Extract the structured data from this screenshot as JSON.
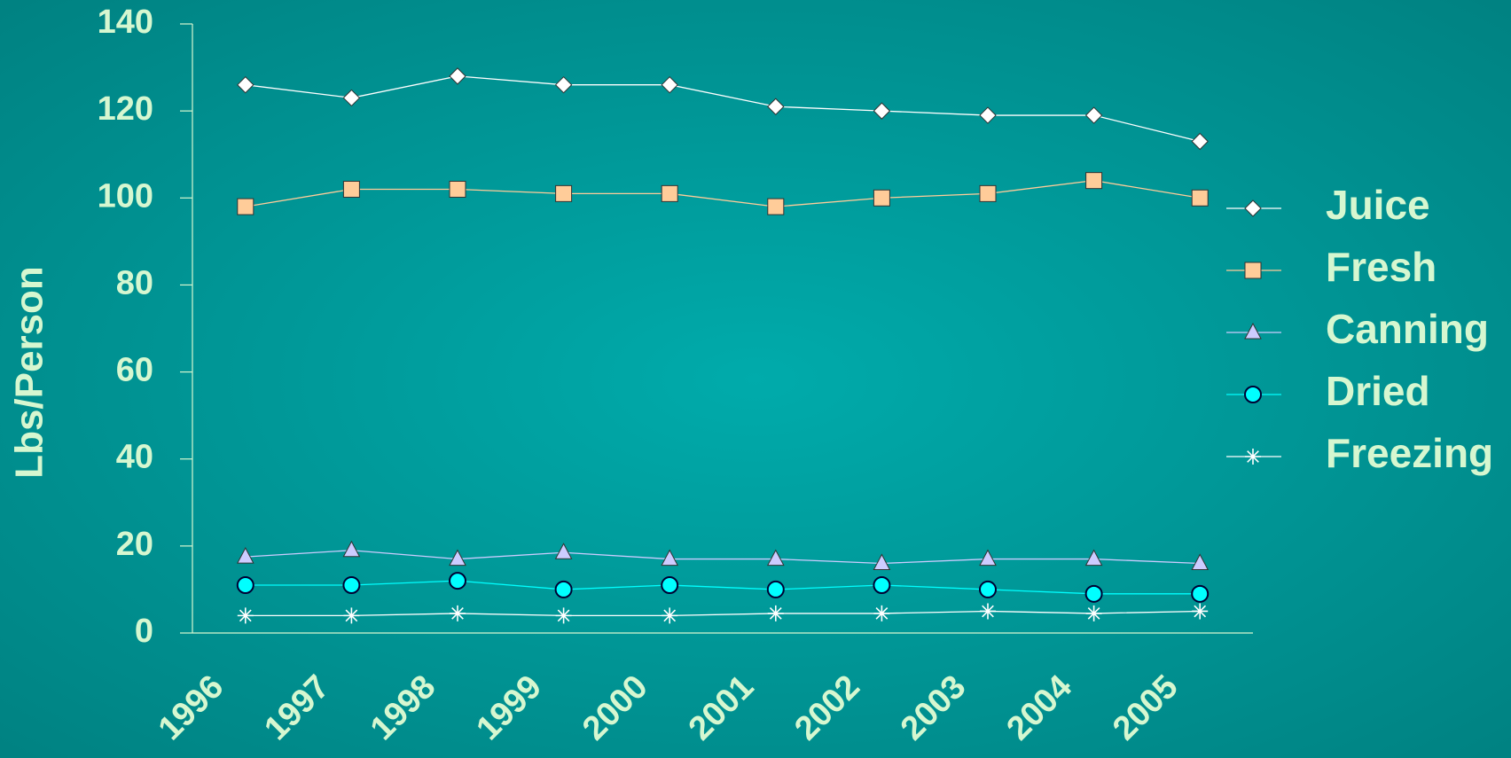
{
  "chart_data": {
    "type": "line",
    "y_label": "Lbs/Person",
    "categories": [
      "1996",
      "1997",
      "1998",
      "1999",
      "2000",
      "2001",
      "2002",
      "2003",
      "2004",
      "2005"
    ],
    "series": [
      {
        "name": "Juice",
        "color": "#ffffff",
        "marker": "diamond",
        "values": [
          126,
          123,
          128,
          126,
          126,
          121,
          120,
          119,
          119,
          113
        ]
      },
      {
        "name": "Fresh",
        "color": "#ffcc99",
        "marker": "square",
        "values": [
          98,
          102,
          102,
          101,
          101,
          98,
          100,
          101,
          104,
          100
        ]
      },
      {
        "name": "Canning",
        "color": "#ccccff",
        "marker": "triangle",
        "values": [
          17.5,
          19,
          17,
          18.5,
          17,
          17,
          16,
          17,
          17,
          16
        ]
      },
      {
        "name": "Dried",
        "color": "#00ffff",
        "marker": "circle",
        "values": [
          11,
          11,
          12,
          10,
          11,
          10,
          11,
          10,
          9,
          9
        ]
      },
      {
        "name": "Freezing",
        "color": "#ffffff",
        "marker": "star",
        "values": [
          4,
          4,
          4.5,
          4,
          4,
          4.5,
          4.5,
          5,
          4.5,
          5
        ]
      }
    ],
    "ylim": [
      0,
      140
    ],
    "yticks": [
      0,
      20,
      40,
      60,
      80,
      100,
      120,
      140
    ],
    "grid": false,
    "legend": "right"
  }
}
